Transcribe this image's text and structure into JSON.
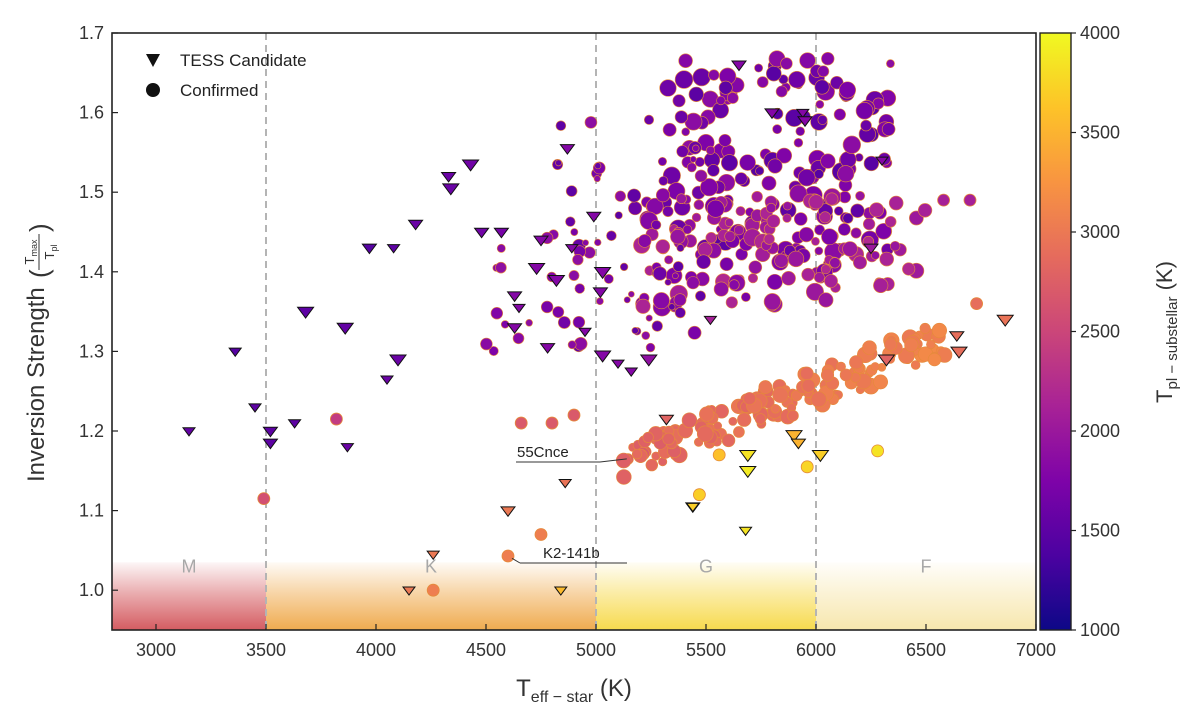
{
  "chart_data": {
    "type": "scatter",
    "xlabel": {
      "main": "T",
      "sub": "eff − star",
      "unit": " (K)"
    },
    "ylabel": {
      "main": "Inversion Strength ",
      "frac_num_main": "T",
      "frac_num_sub": "max",
      "frac_den_main": "T",
      "frac_den_sub": "pl"
    },
    "xlim": [
      2800,
      7000
    ],
    "ylim": [
      0.95,
      1.7
    ],
    "xticks": [
      "3000",
      "3500",
      "4000",
      "4500",
      "5000",
      "5500",
      "6000",
      "6500",
      "7000"
    ],
    "yticks": [
      "1.0",
      "1.1",
      "1.2",
      "1.3",
      "1.4",
      "1.5",
      "1.6",
      "1.7"
    ],
    "legend": {
      "placement": "top-left",
      "entries": [
        {
          "marker": "triangle-down",
          "label": "TESS Candidate"
        },
        {
          "marker": "circle",
          "label": "Confirmed"
        }
      ]
    },
    "colorbar": {
      "label_main": "T",
      "label_sub": "pl − substellar",
      "label_unit": " (K)",
      "range": [
        1000,
        4000
      ],
      "ticks": [
        "1000",
        "1500",
        "2000",
        "2500",
        "3000",
        "3500",
        "4000"
      ],
      "colormap": "plasma"
    },
    "spectral_bands": [
      {
        "label": "M",
        "x_range": [
          2800,
          3500
        ],
        "color": "#d04a50"
      },
      {
        "label": "K",
        "x_range": [
          3500,
          5000
        ],
        "color": "#eea23c"
      },
      {
        "label": "G",
        "x_range": [
          5000,
          6000
        ],
        "color": "#f6d63a"
      },
      {
        "label": "F",
        "x_range": [
          6000,
          7000
        ],
        "color": "#f6e4a4"
      }
    ],
    "vlines": [
      3500,
      5000,
      6000
    ],
    "annotations": [
      {
        "text": "55Cnce",
        "x": 5140,
        "y": 1.165
      },
      {
        "text": "K2-141b",
        "x": 4600,
        "y": 1.04
      }
    ],
    "candidates": [
      {
        "x": 3150,
        "y": 1.2,
        "t": 1550
      },
      {
        "x": 3360,
        "y": 1.3,
        "t": 1450
      },
      {
        "x": 3450,
        "y": 1.23,
        "t": 1500
      },
      {
        "x": 3520,
        "y": 1.2,
        "t": 1500
      },
      {
        "x": 3520,
        "y": 1.185,
        "t": 1500
      },
      {
        "x": 3630,
        "y": 1.21,
        "t": 1500
      },
      {
        "x": 3680,
        "y": 1.35,
        "t": 1500
      },
      {
        "x": 3860,
        "y": 1.33,
        "t": 1550
      },
      {
        "x": 3870,
        "y": 1.18,
        "t": 1600
      },
      {
        "x": 3970,
        "y": 1.43,
        "t": 1450
      },
      {
        "x": 4050,
        "y": 1.265,
        "t": 1600
      },
      {
        "x": 4080,
        "y": 1.43,
        "t": 1500
      },
      {
        "x": 4100,
        "y": 1.29,
        "t": 1600
      },
      {
        "x": 4180,
        "y": 1.46,
        "t": 1600
      },
      {
        "x": 4330,
        "y": 1.52,
        "t": 1600
      },
      {
        "x": 4340,
        "y": 1.505,
        "t": 1600
      },
      {
        "x": 4430,
        "y": 1.535,
        "t": 1650
      },
      {
        "x": 4480,
        "y": 1.45,
        "t": 1650
      },
      {
        "x": 4570,
        "y": 1.45,
        "t": 1700
      },
      {
        "x": 4600,
        "y": 1.1,
        "t": 3000
      },
      {
        "x": 4630,
        "y": 1.37,
        "t": 1800
      },
      {
        "x": 4650,
        "y": 1.355,
        "t": 1800
      },
      {
        "x": 4630,
        "y": 1.33,
        "t": 1800
      },
      {
        "x": 4730,
        "y": 1.405,
        "t": 1800
      },
      {
        "x": 4750,
        "y": 1.44,
        "t": 1800
      },
      {
        "x": 4780,
        "y": 1.305,
        "t": 1800
      },
      {
        "x": 4820,
        "y": 1.39,
        "t": 1800
      },
      {
        "x": 4860,
        "y": 1.135,
        "t": 2950
      },
      {
        "x": 4870,
        "y": 1.555,
        "t": 1800
      },
      {
        "x": 4890,
        "y": 1.43,
        "t": 1800
      },
      {
        "x": 4950,
        "y": 1.325,
        "t": 1800
      },
      {
        "x": 4990,
        "y": 1.47,
        "t": 1800
      },
      {
        "x": 5020,
        "y": 1.375,
        "t": 1800
      },
      {
        "x": 5030,
        "y": 1.295,
        "t": 1800
      },
      {
        "x": 5030,
        "y": 1.4,
        "t": 1800
      },
      {
        "x": 5100,
        "y": 1.285,
        "t": 1800
      },
      {
        "x": 5160,
        "y": 1.275,
        "t": 1800
      },
      {
        "x": 5240,
        "y": 1.29,
        "t": 1900
      },
      {
        "x": 5320,
        "y": 1.215,
        "t": 2800
      },
      {
        "x": 5440,
        "y": 1.105,
        "t": 3700
      },
      {
        "x": 5520,
        "y": 1.34,
        "t": 2100
      },
      {
        "x": 5650,
        "y": 1.66,
        "t": 1800
      },
      {
        "x": 5690,
        "y": 1.17,
        "t": 3850
      },
      {
        "x": 5690,
        "y": 1.15,
        "t": 3900
      },
      {
        "x": 5800,
        "y": 1.6,
        "t": 1800
      },
      {
        "x": 5900,
        "y": 1.195,
        "t": 3500
      },
      {
        "x": 5920,
        "y": 1.185,
        "t": 3500
      },
      {
        "x": 5940,
        "y": 1.6,
        "t": 1800
      },
      {
        "x": 5950,
        "y": 1.59,
        "t": 1800
      },
      {
        "x": 6020,
        "y": 1.17,
        "t": 3700
      },
      {
        "x": 6250,
        "y": 1.43,
        "t": 2000
      },
      {
        "x": 6300,
        "y": 1.54,
        "t": 1800
      },
      {
        "x": 6320,
        "y": 1.29,
        "t": 2800
      },
      {
        "x": 6640,
        "y": 1.32,
        "t": 2900
      },
      {
        "x": 6650,
        "y": 1.3,
        "t": 2900
      },
      {
        "x": 6860,
        "y": 1.34,
        "t": 2950
      }
    ],
    "special_points": [
      {
        "x": 4260,
        "y": 1.045,
        "t": 3000,
        "marker": "triangle-down"
      },
      {
        "x": 4150,
        "y": 1.0,
        "t": 3000,
        "marker": "triangle-down"
      },
      {
        "x": 4260,
        "y": 1.0,
        "t": 3050,
        "marker": "circle"
      },
      {
        "x": 4600,
        "y": 1.043,
        "t": 3050,
        "marker": "circle"
      },
      {
        "x": 4750,
        "y": 1.07,
        "t": 3050,
        "marker": "circle"
      },
      {
        "x": 4840,
        "y": 1.0,
        "t": 3550,
        "marker": "triangle-down"
      },
      {
        "x": 5440,
        "y": 1.105,
        "t": 3700,
        "marker": "triangle-down"
      },
      {
        "x": 5470,
        "y": 1.12,
        "t": 3700,
        "marker": "circle"
      },
      {
        "x": 5560,
        "y": 1.17,
        "t": 3600,
        "marker": "circle"
      },
      {
        "x": 5680,
        "y": 1.075,
        "t": 3850,
        "marker": "triangle-down"
      },
      {
        "x": 5960,
        "y": 1.155,
        "t": 3750,
        "marker": "circle"
      },
      {
        "x": 6280,
        "y": 1.175,
        "t": 3850,
        "marker": "circle"
      },
      {
        "x": 3490,
        "y": 1.115,
        "t": 2600,
        "marker": "circle"
      },
      {
        "x": 3820,
        "y": 1.215,
        "t": 2400,
        "marker": "circle"
      },
      {
        "x": 4660,
        "y": 1.21,
        "t": 2700,
        "marker": "circle"
      },
      {
        "x": 4800,
        "y": 1.21,
        "t": 2700,
        "marker": "circle"
      },
      {
        "x": 4900,
        "y": 1.22,
        "t": 2700,
        "marker": "circle"
      },
      {
        "x": 6730,
        "y": 1.36,
        "t": 2900,
        "marker": "circle"
      },
      {
        "x": 6700,
        "y": 1.49,
        "t": 2100,
        "marker": "circle"
      },
      {
        "x": 6580,
        "y": 1.49,
        "t": 2100,
        "marker": "circle"
      }
    ]
  }
}
